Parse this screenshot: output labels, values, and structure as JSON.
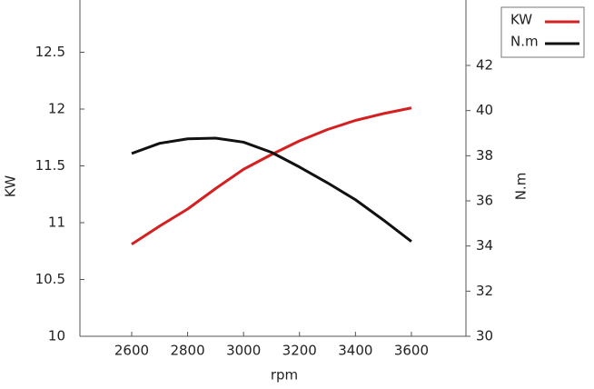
{
  "chart_data": {
    "type": "line",
    "x_label": "rpm",
    "y_label": "KW",
    "y2_label": "N.m",
    "x": [
      2600,
      2700,
      2800,
      2900,
      3000,
      3100,
      3200,
      3300,
      3400,
      3500,
      3600
    ],
    "series": [
      {
        "name": "KW",
        "color": "#d42020",
        "values": [
          10.81,
          10.97,
          11.12,
          11.3,
          11.47,
          11.6,
          11.72,
          11.82,
          11.9,
          11.96,
          12.01
        ]
      },
      {
        "name": "N.m",
        "color": "#111111",
        "axis": "y2",
        "values": [
          38.1,
          38.55,
          38.75,
          38.78,
          38.6,
          38.15,
          37.5,
          36.8,
          36.05,
          35.15,
          34.2
        ]
      }
    ],
    "xlim": [
      2415,
      3795
    ],
    "xticks": [
      2600,
      2800,
      3000,
      3200,
      3400,
      3600
    ],
    "ylim": [
      10,
      12.96
    ],
    "yticks": [
      10,
      10.5,
      11,
      11.5,
      12,
      12.5
    ],
    "y2lim": [
      30,
      44.9
    ],
    "y2ticks": [
      30,
      32,
      34,
      36,
      38,
      40,
      42
    ],
    "legend": "top-right"
  }
}
